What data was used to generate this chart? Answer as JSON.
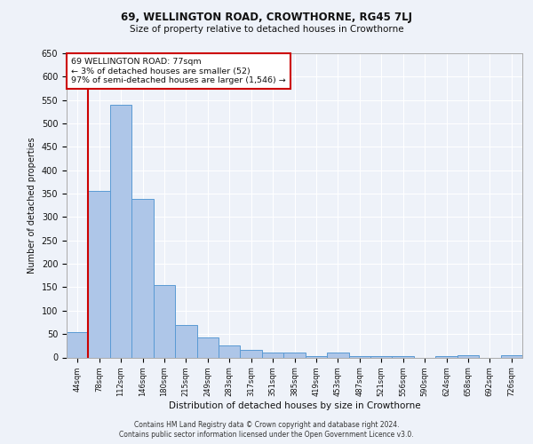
{
  "title": "69, WELLINGTON ROAD, CROWTHORNE, RG45 7LJ",
  "subtitle": "Size of property relative to detached houses in Crowthorne",
  "xlabel": "Distribution of detached houses by size in Crowthorne",
  "ylabel": "Number of detached properties",
  "bar_labels": [
    "44sqm",
    "78sqm",
    "112sqm",
    "146sqm",
    "180sqm",
    "215sqm",
    "249sqm",
    "283sqm",
    "317sqm",
    "351sqm",
    "385sqm",
    "419sqm",
    "453sqm",
    "487sqm",
    "521sqm",
    "556sqm",
    "590sqm",
    "624sqm",
    "658sqm",
    "692sqm",
    "726sqm"
  ],
  "bar_values": [
    55,
    355,
    540,
    338,
    155,
    70,
    42,
    25,
    17,
    10,
    10,
    3,
    10,
    3,
    3,
    3,
    0,
    3,
    5,
    0,
    5
  ],
  "bar_color": "#aec6e8",
  "bar_edge_color": "#5a9ad4",
  "vline_color": "#cc0000",
  "annotation_text": "69 WELLINGTON ROAD: 77sqm\n← 3% of detached houses are smaller (52)\n97% of semi-detached houses are larger (1,546) →",
  "annotation_box_color": "#ffffff",
  "annotation_box_edge_color": "#cc0000",
  "ylim": [
    0,
    650
  ],
  "yticks": [
    0,
    50,
    100,
    150,
    200,
    250,
    300,
    350,
    400,
    450,
    500,
    550,
    600,
    650
  ],
  "footer_line1": "Contains HM Land Registry data © Crown copyright and database right 2024.",
  "footer_line2": "Contains public sector information licensed under the Open Government Licence v3.0.",
  "bg_color": "#eef2f9",
  "grid_color": "#ffffff"
}
